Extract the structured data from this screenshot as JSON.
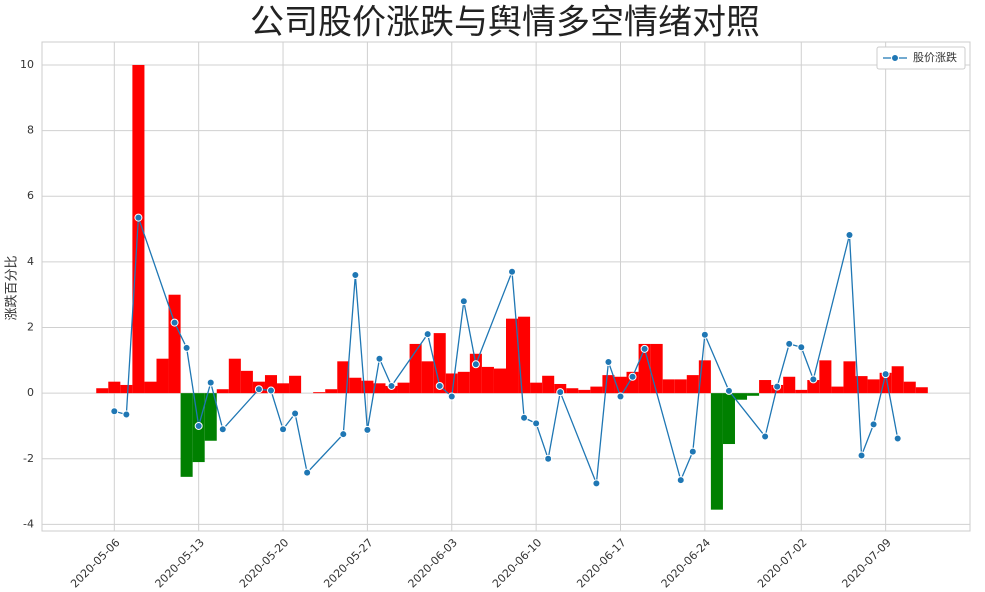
{
  "chart_data": {
    "type": "bar_line",
    "title": "公司股价涨跌与舆情多空情绪对照",
    "ylabel": "涨跌百分比",
    "xlim": [
      "2020-04-30",
      "2020-07-16"
    ],
    "xticks": [
      "2020-05-06",
      "2020-05-13",
      "2020-05-20",
      "2020-05-27",
      "2020-06-03",
      "2020-06-10",
      "2020-06-17",
      "2020-06-24",
      "2020-07-02",
      "2020-07-09"
    ],
    "ylim": [
      -4.2,
      10.7
    ],
    "yticks": [
      -4,
      -2,
      0,
      2,
      4,
      6,
      8,
      10
    ],
    "grid": true,
    "legend": "upper right",
    "series": [
      {
        "name": "股价涨跌",
        "type": "line",
        "color": "#1f77b4",
        "x": [
          "2020-05-06",
          "2020-05-07",
          "2020-05-08",
          "2020-05-11",
          "2020-05-12",
          "2020-05-13",
          "2020-05-14",
          "2020-05-15",
          "2020-05-18",
          "2020-05-19",
          "2020-05-20",
          "2020-05-21",
          "2020-05-22",
          "2020-05-25",
          "2020-05-26",
          "2020-05-27",
          "2020-05-28",
          "2020-05-29",
          "2020-06-01",
          "2020-06-02",
          "2020-06-03",
          "2020-06-04",
          "2020-06-05",
          "2020-06-08",
          "2020-06-09",
          "2020-06-10",
          "2020-06-11",
          "2020-06-12",
          "2020-06-15",
          "2020-06-16",
          "2020-06-17",
          "2020-06-18",
          "2020-06-19",
          "2020-06-22",
          "2020-06-23",
          "2020-06-24",
          "2020-06-26",
          "2020-06-29",
          "2020-06-30",
          "2020-07-01",
          "2020-07-02",
          "2020-07-03",
          "2020-07-06",
          "2020-07-07",
          "2020-07-08",
          "2020-07-09",
          "2020-07-10"
        ],
        "values": [
          -0.55,
          -0.65,
          5.35,
          2.15,
          1.38,
          -1.0,
          0.32,
          -1.1,
          0.12,
          0.08,
          -1.1,
          -0.62,
          -2.42,
          -1.25,
          3.6,
          -1.12,
          1.05,
          0.22,
          1.8,
          0.22,
          -0.1,
          2.8,
          0.88,
          3.7,
          -0.75,
          -0.92,
          -2.0,
          0.03,
          -2.75,
          0.95,
          -0.1,
          0.5,
          1.35,
          -2.65,
          -1.78,
          1.78,
          0.07,
          -1.32,
          0.2,
          1.5,
          1.4,
          0.42,
          4.82,
          -1.9,
          -0.95,
          0.58,
          -1.38
        ]
      },
      {
        "type": "bar",
        "pos_color": "#ff0000",
        "neg_color": "#008000",
        "x": [
          "2020-05-05",
          "2020-05-06",
          "2020-05-07",
          "2020-05-08",
          "2020-05-09",
          "2020-05-10",
          "2020-05-11",
          "2020-05-12",
          "2020-05-13",
          "2020-05-14",
          "2020-05-15",
          "2020-05-16",
          "2020-05-17",
          "2020-05-18",
          "2020-05-19",
          "2020-05-20",
          "2020-05-21",
          "2020-05-22",
          "2020-05-23",
          "2020-05-24",
          "2020-05-25",
          "2020-05-26",
          "2020-05-27",
          "2020-05-28",
          "2020-05-29",
          "2020-05-30",
          "2020-05-31",
          "2020-06-01",
          "2020-06-02",
          "2020-06-03",
          "2020-06-04",
          "2020-06-05",
          "2020-06-06",
          "2020-06-07",
          "2020-06-08",
          "2020-06-09",
          "2020-06-10",
          "2020-06-11",
          "2020-06-12",
          "2020-06-13",
          "2020-06-14",
          "2020-06-15",
          "2020-06-16",
          "2020-06-17",
          "2020-06-18",
          "2020-06-19",
          "2020-06-20",
          "2020-06-21",
          "2020-06-22",
          "2020-06-23",
          "2020-06-24",
          "2020-06-25",
          "2020-06-26",
          "2020-06-27",
          "2020-06-28",
          "2020-06-29",
          "2020-06-30",
          "2020-07-01",
          "2020-07-02",
          "2020-07-03",
          "2020-07-04",
          "2020-07-05",
          "2020-07-06",
          "2020-07-07",
          "2020-07-08",
          "2020-07-09",
          "2020-07-10",
          "2020-07-11",
          "2020-07-12"
        ],
        "values": [
          0.15,
          0.35,
          0.25,
          10.0,
          0.35,
          1.05,
          3.0,
          -2.55,
          -2.1,
          -1.45,
          0.12,
          1.05,
          0.68,
          0.35,
          0.55,
          0.3,
          0.53,
          0,
          0.03,
          0.12,
          0.97,
          0.47,
          0.38,
          0.3,
          0.22,
          0.32,
          1.5,
          0.97,
          1.83,
          0.6,
          0.65,
          1.2,
          0.8,
          0.75,
          2.27,
          2.33,
          0.32,
          0.53,
          0.28,
          0.15,
          0.1,
          0.2,
          0.55,
          0.5,
          0.65,
          1.5,
          1.5,
          0.42,
          0.42,
          0.55,
          1.0,
          -3.55,
          -1.55,
          -0.2,
          -0.08,
          0.4,
          0.25,
          0.5,
          0.1,
          0.4,
          1.0,
          0.2,
          0.97,
          0.52,
          0.42,
          0.62,
          0.82,
          0.35,
          0.18
        ]
      }
    ]
  }
}
